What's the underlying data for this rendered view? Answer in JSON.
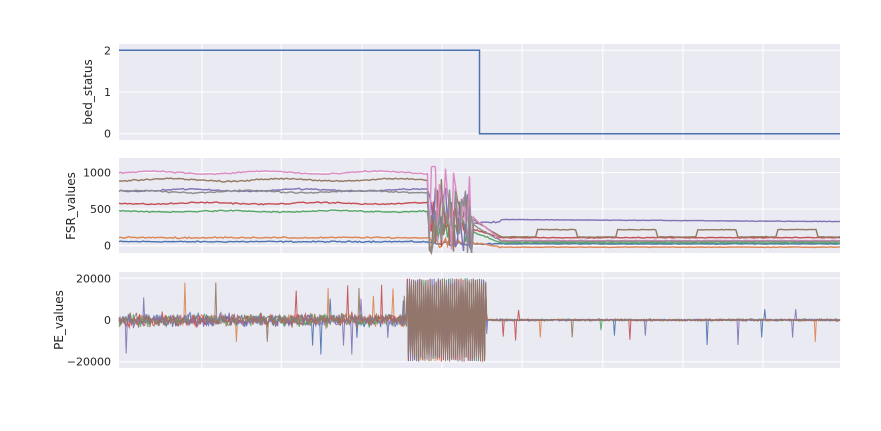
{
  "chart_data": [
    {
      "type": "line",
      "ylabel": "bed_status",
      "ylim": [
        -0.15,
        2.15
      ],
      "yticks": [
        0,
        1,
        2
      ],
      "ytick_labels": [
        "0",
        "1",
        "2"
      ],
      "xlim": [
        0,
        1
      ],
      "grid": true,
      "series": [
        {
          "color": "#4c72b0",
          "x": [
            0,
            0.5,
            0.5,
            1
          ],
          "y": [
            2,
            2,
            0,
            0
          ]
        }
      ]
    },
    {
      "type": "line",
      "ylabel": "FSR_values",
      "ylim": [
        -100,
        1200
      ],
      "yticks": [
        0,
        500,
        1000
      ],
      "ytick_labels": [
        "0",
        "500",
        "1000"
      ],
      "xlim": [
        0,
        1
      ],
      "grid": true,
      "series": [
        {
          "color": "#4c72b0",
          "pre": 55,
          "post": 25
        },
        {
          "color": "#dd8452",
          "pre": 110,
          "post": -20
        },
        {
          "color": "#55a868",
          "pre": 470,
          "post": 40
        },
        {
          "color": "#c44e52",
          "pre": 580,
          "post": 110
        },
        {
          "color": "#8172b3",
          "pre": 760,
          "post": 330
        },
        {
          "color": "#937860",
          "pre": 900,
          "post": 120
        },
        {
          "color": "#da8bc3",
          "pre": 1000,
          "post": 70
        },
        {
          "color": "#8c8c8c",
          "pre": 740,
          "post": 60
        }
      ]
    },
    {
      "type": "line",
      "ylabel": "PE_values",
      "ylim": [
        -23000,
        23000
      ],
      "yticks": [
        -20000,
        0,
        20000
      ],
      "ytick_labels": [
        "−20000",
        "0",
        "20000"
      ],
      "xlim": [
        0,
        1
      ],
      "grid": true,
      "series": [
        {
          "color": "#4c72b0"
        },
        {
          "color": "#dd8452"
        },
        {
          "color": "#55a868"
        },
        {
          "color": "#c44e52"
        },
        {
          "color": "#8172b3"
        },
        {
          "color": "#937860"
        }
      ]
    }
  ]
}
